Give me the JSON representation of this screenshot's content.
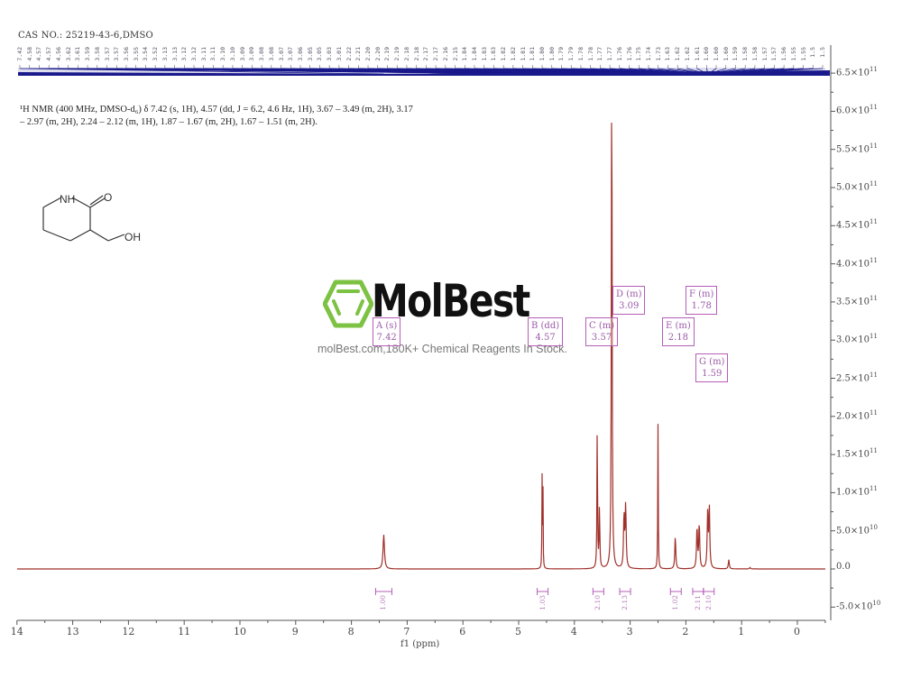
{
  "header": {
    "cas_line": "CAS NO.: 25219-43-6,DMSO"
  },
  "description": {
    "line1": "¹H NMR (400 MHz, DMSO-d₆) δ 7.42 (s, 1H), 4.57 (dd, J = 6.2, 4.6 Hz, 1H), 3.67 – 3.49 (m, 2H), 3.17",
    "line2": "– 2.97 (m, 2H), 2.24 – 2.12 (m, 1H), 1.87 – 1.67 (m, 2H), 1.67 – 1.51 (m, 2H)."
  },
  "structure": {
    "nh_label": "NH",
    "o_label": "O",
    "oh_label": "OH"
  },
  "watermark": {
    "brand": "MolBest",
    "tagline": "molBest.com,180K+ Chemical Reagents In Stock.",
    "logo_color": "#7dc242"
  },
  "multiplets": [
    {
      "id": "A",
      "type": "s",
      "label": "A (s)",
      "shift": "7.42"
    },
    {
      "id": "B",
      "type": "dd",
      "label": "B (dd)",
      "shift": "4.57"
    },
    {
      "id": "C",
      "type": "m",
      "label": "C (m)",
      "shift": "3.57"
    },
    {
      "id": "D",
      "type": "m",
      "label": "D (m)",
      "shift": "3.09"
    },
    {
      "id": "E",
      "type": "m",
      "label": "E (m)",
      "shift": "2.18"
    },
    {
      "id": "F",
      "type": "m",
      "label": "F (m)",
      "shift": "1.78"
    },
    {
      "id": "G",
      "type": "m",
      "label": "G (m)",
      "shift": "1.59"
    }
  ],
  "integrals": [
    {
      "ppm": 7.42,
      "value": "1.00"
    },
    {
      "ppm": 4.57,
      "value": "1.03"
    },
    {
      "ppm": 3.57,
      "value": "2.10"
    },
    {
      "ppm": 3.09,
      "value": "2.13"
    },
    {
      "ppm": 2.18,
      "value": "1.02"
    },
    {
      "ppm": 1.78,
      "value": "2.11"
    },
    {
      "ppm": 1.59,
      "value": "2.10"
    }
  ],
  "peak_labels": [
    "7.42",
    "4.58",
    "4.57",
    "4.57",
    "4.56",
    "3.62",
    "3.61",
    "3.59",
    "3.58",
    "3.57",
    "3.57",
    "3.56",
    "3.55",
    "3.54",
    "3.52",
    "3.13",
    "3.13",
    "3.12",
    "3.12",
    "3.11",
    "3.11",
    "3.10",
    "3.10",
    "3.09",
    "3.09",
    "3.08",
    "3.08",
    "3.07",
    "3.07",
    "3.06",
    "3.05",
    "3.05",
    "3.03",
    "3.01",
    "2.22",
    "2.21",
    "2.20",
    "2.20",
    "2.19",
    "2.19",
    "2.18",
    "2.18",
    "2.17",
    "2.17",
    "2.16",
    "2.15",
    "1.84",
    "1.84",
    "1.83",
    "1.83",
    "1.82",
    "1.82",
    "1.81",
    "1.81",
    "1.80",
    "1.80",
    "1.79",
    "1.79",
    "1.78",
    "1.78",
    "1.77",
    "1.77",
    "1.76",
    "1.76",
    "1.75",
    "1.74",
    "1.73",
    "1.63",
    "1.62",
    "1.62",
    "1.61",
    "1.60",
    "1.60",
    "1.60",
    "1.59",
    "1.58",
    "1.58",
    "1.57",
    "1.57",
    "1.56",
    "1.55",
    "1.55",
    "1.5",
    "1.5"
  ],
  "colors": {
    "spectrum": "#a0302a",
    "peak_picks": "#1a1a8c",
    "annotation": "#b65db8",
    "axis": "#555555"
  },
  "chart_data": {
    "type": "line",
    "title": "1H NMR (400 MHz, DMSO-d6)",
    "xlabel": "f1 (ppm)",
    "ylabel": "",
    "xlim": [
      14,
      -0.5
    ],
    "ylim": [
      -60000000000.0,
      660000000000.0
    ],
    "x_ticks": [
      "14",
      "13",
      "12",
      "11",
      "10",
      "9",
      "8",
      "7",
      "6",
      "5",
      "4",
      "3",
      "2",
      "1",
      "0"
    ],
    "y_ticks": [
      {
        "value": -50000000000.0,
        "label": "-5.0×10",
        "exp": "10"
      },
      {
        "value": 0,
        "label": "0.0",
        "exp": ""
      },
      {
        "value": 50000000000.0,
        "label": "5.0×10",
        "exp": "10"
      },
      {
        "value": 100000000000.0,
        "label": "1.0×10",
        "exp": "11"
      },
      {
        "value": 150000000000.0,
        "label": "1.5×10",
        "exp": "11"
      },
      {
        "value": 200000000000.0,
        "label": "2.0×10",
        "exp": "11"
      },
      {
        "value": 250000000000.0,
        "label": "2.5×10",
        "exp": "11"
      },
      {
        "value": 300000000000.0,
        "label": "3.0×10",
        "exp": "11"
      },
      {
        "value": 350000000000.0,
        "label": "3.5×10",
        "exp": "11"
      },
      {
        "value": 400000000000.0,
        "label": "4.0×10",
        "exp": "11"
      },
      {
        "value": 450000000000.0,
        "label": "4.5×10",
        "exp": "11"
      },
      {
        "value": 500000000000.0,
        "label": "5.0×10",
        "exp": "11"
      },
      {
        "value": 550000000000.0,
        "label": "5.5×10",
        "exp": "11"
      },
      {
        "value": 600000000000.0,
        "label": "6.0×10",
        "exp": "11"
      },
      {
        "value": 650000000000.0,
        "label": "6.5×10",
        "exp": "11"
      }
    ],
    "peaks": [
      {
        "ppm": 7.42,
        "intensity": 45000000000.0,
        "width": 0.03
      },
      {
        "ppm": 4.58,
        "intensity": 120000000000.0,
        "width": 0.008
      },
      {
        "ppm": 4.565,
        "intensity": 125000000000.0,
        "width": 0.008
      },
      {
        "ppm": 3.59,
        "intensity": 196000000000.0,
        "width": 0.012
      },
      {
        "ppm": 3.55,
        "intensity": 80000000000.0,
        "width": 0.015
      },
      {
        "ppm": 3.33,
        "intensity": 700000000000.0,
        "width": 0.015
      },
      {
        "ppm": 3.11,
        "intensity": 70000000000.0,
        "width": 0.02
      },
      {
        "ppm": 3.08,
        "intensity": 84000000000.0,
        "width": 0.02
      },
      {
        "ppm": 2.5,
        "intensity": 190000000000.0,
        "width": 0.01
      },
      {
        "ppm": 2.19,
        "intensity": 43000000000.0,
        "width": 0.02
      },
      {
        "ppm": 1.8,
        "intensity": 55000000000.0,
        "width": 0.02
      },
      {
        "ppm": 1.76,
        "intensity": 60000000000.0,
        "width": 0.02
      },
      {
        "ppm": 1.61,
        "intensity": 70000000000.0,
        "width": 0.02
      },
      {
        "ppm": 1.58,
        "intensity": 82000000000.0,
        "width": 0.02
      },
      {
        "ppm": 1.23,
        "intensity": 12000000000.0,
        "width": 0.02
      },
      {
        "ppm": 0.85,
        "intensity": 2000000000.0,
        "width": 0.02
      }
    ],
    "annotations": [
      "A (s) 7.42",
      "B (dd) 4.57",
      "C (m) 3.57",
      "D (m) 3.09",
      "E (m) 2.18",
      "F (m) 1.78",
      "G (m) 1.59"
    ]
  }
}
